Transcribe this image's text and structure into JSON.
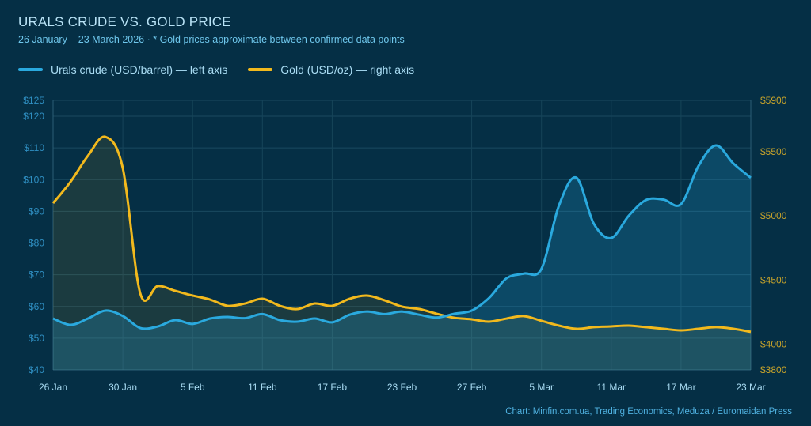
{
  "title": "URALS CRUDE VS. GOLD PRICE",
  "subtitle": "26 January – 23 March 2026  ·  * Gold prices approximate between confirmed data points",
  "source": "Chart: Minfin.com.ua, Trading Economics, Meduza / Euromaidan Press",
  "colors": {
    "background": "#052f45",
    "urals": "#2aa9de",
    "gold": "#f2b91d",
    "left_axis": "#2f8fc2",
    "right_axis": "#c9a42a",
    "x_axis": "#a9dcf3"
  },
  "chart_data": {
    "type": "line",
    "legend_placement": "top-left",
    "grid": true,
    "x_labels": [
      "26 Jan",
      "30 Jan",
      "5 Feb",
      "11 Feb",
      "17 Feb",
      "23 Feb",
      "27 Feb",
      "5 Mar",
      "11 Mar",
      "17 Mar",
      "23 Mar"
    ],
    "y_left": {
      "range": [
        40,
        125
      ],
      "ticks": [
        40,
        50,
        60,
        70,
        80,
        90,
        100,
        110,
        120,
        125
      ],
      "labels": [
        "$40",
        "$50",
        "$60",
        "$70",
        "$80",
        "$90",
        "$100",
        "$110",
        "$120",
        "$125"
      ]
    },
    "y_right": {
      "range": [
        3800,
        5900
      ],
      "ticks": [
        3800,
        4000,
        4500,
        5000,
        5500,
        5900
      ],
      "labels": [
        "$3800",
        "$4000",
        "$4500",
        "$5000",
        "$5500",
        "$5900"
      ]
    },
    "series": [
      {
        "name": "Urals crude (USD/barrel) — left axis",
        "axis": "left",
        "values": [
          56.2,
          54.2,
          56.2,
          58.7,
          57.0,
          53.2,
          53.7,
          55.7,
          54.5,
          56.2,
          56.7,
          56.3,
          57.6,
          55.7,
          55.2,
          56.2,
          55.0,
          57.4,
          58.4,
          57.6,
          58.4,
          57.4,
          56.5,
          57.7,
          58.7,
          62.7,
          68.9,
          70.4,
          71.9,
          91.8,
          100.6,
          86.1,
          81.6,
          88.6,
          93.6,
          93.7,
          92.3,
          104.3,
          110.8,
          105.1,
          100.6
        ]
      },
      {
        "name": "Gold (USD/oz) — right axis",
        "axis": "right",
        "values": [
          5099,
          5266,
          5469,
          5616,
          5370,
          4395,
          4453,
          4416,
          4379,
          4348,
          4299,
          4317,
          4354,
          4299,
          4274,
          4317,
          4299,
          4354,
          4379,
          4342,
          4293,
          4274,
          4237,
          4206,
          4194,
          4176,
          4200,
          4219,
          4182,
          4145,
          4120,
          4133,
          4139,
          4145,
          4133,
          4120,
          4108,
          4120,
          4133,
          4120,
          4096
        ]
      }
    ]
  }
}
